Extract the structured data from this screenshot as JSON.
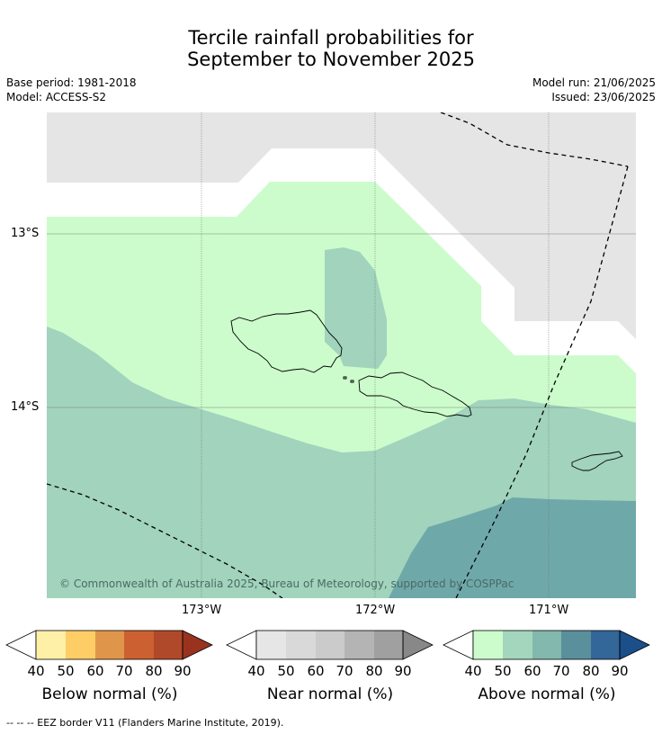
{
  "title_line1": "Tercile rainfall probabilities for",
  "title_line2": "September to November 2025",
  "meta": {
    "base_period": "Base period: 1981-2018",
    "model": "Model: ACCESS-S2",
    "model_run": "Model run: 21/06/2025",
    "issued": "Issued: 23/06/2025"
  },
  "map": {
    "copyright": "© Commonwealth of Australia 2025, Bureau of Meteorology, supported by COSPPac",
    "lat_ticks": [
      "13°S",
      "14°S"
    ],
    "lon_ticks": [
      "173°W",
      "172°W",
      "171°W"
    ],
    "region_colors": {
      "near_normal_40_50": "#e5e5e5",
      "above_normal_40_50": "#ccfccc",
      "above_normal_50_60": "#a1d3bd",
      "above_normal_60_70": "#6fa8a9",
      "no_dominant": "#ffffff"
    },
    "eez_line_style": "dashed"
  },
  "colorbars": [
    {
      "label": "Below normal (%)",
      "ticks": [
        "40",
        "50",
        "60",
        "70",
        "80",
        "90"
      ],
      "colors": [
        "#ffffff",
        "#fff0a8",
        "#fecd66",
        "#e0964a",
        "#cc6030",
        "#b0492a",
        "#993320"
      ]
    },
    {
      "label": "Near normal (%)",
      "ticks": [
        "40",
        "50",
        "60",
        "70",
        "80",
        "90"
      ],
      "colors": [
        "#ffffff",
        "#e6e6e6",
        "#d9d9d9",
        "#cbcbcb",
        "#b4b4b4",
        "#a0a0a0",
        "#888888"
      ]
    },
    {
      "label": "Above normal (%)",
      "ticks": [
        "40",
        "50",
        "60",
        "70",
        "80",
        "90"
      ],
      "colors": [
        "#ffffff",
        "#ccfccc",
        "#a3d6bd",
        "#82b8ad",
        "#5a8f9c",
        "#336699",
        "#1a4f8a"
      ]
    }
  ],
  "footer": "--  --  -- EEZ border V11 (Flanders Marine Institute, 2019)."
}
